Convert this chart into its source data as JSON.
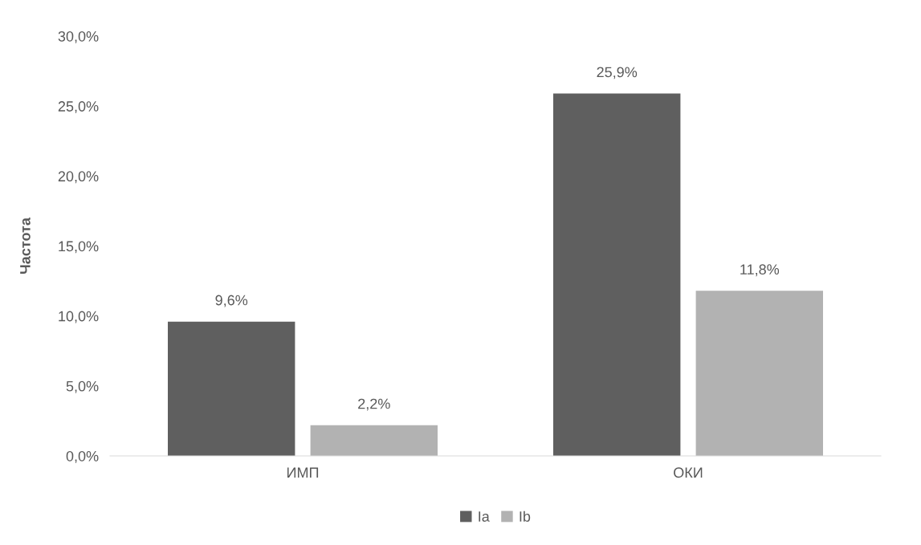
{
  "chart_data": {
    "type": "bar",
    "ylabel": "Частота",
    "categories": [
      "ИМП",
      "ОКИ"
    ],
    "series": [
      {
        "name": "Ia",
        "color": "#5f5f5f",
        "values": [
          9.6,
          25.9
        ],
        "value_labels": [
          "9,6%",
          "25,9%"
        ]
      },
      {
        "name": "Ib",
        "color": "#b2b2b2",
        "values": [
          2.2,
          11.8
        ],
        "value_labels": [
          "2,2%",
          "11,8%"
        ]
      }
    ],
    "ylim": [
      0,
      30
    ],
    "yticks": [
      {
        "value": 0,
        "label": "0,0%"
      },
      {
        "value": 5,
        "label": "5,0%"
      },
      {
        "value": 10,
        "label": "10,0%"
      },
      {
        "value": 15,
        "label": "15,0%"
      },
      {
        "value": 20,
        "label": "20,0%"
      },
      {
        "value": 25,
        "label": "25,0%"
      },
      {
        "value": 30,
        "label": "30,0%"
      }
    ],
    "grid": false,
    "legend": "bottom"
  }
}
